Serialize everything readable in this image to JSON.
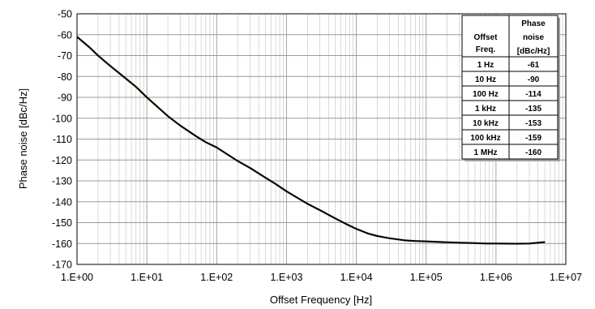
{
  "chart_data": {
    "type": "line",
    "xlabel": "Offset Frequency [Hz]",
    "ylabel": "Phase noise [dBc/Hz]",
    "x_scale": "log",
    "xlim": [
      1,
      10000000
    ],
    "ylim": [
      -170,
      -50
    ],
    "grid": true,
    "x_tick_labels": [
      "1.E+00",
      "1.E+01",
      "1.E+02",
      "1.E+03",
      "1.E+04",
      "1.E+05",
      "1.E+06",
      "1.E+07"
    ],
    "y_tick_labels": [
      "-50",
      "-60",
      "-70",
      "-80",
      "-90",
      "-100",
      "-110",
      "-120",
      "-130",
      "-140",
      "-150",
      "-160",
      "-170"
    ],
    "series": [
      {
        "color": "#000000",
        "x": [
          1,
          1.5,
          2,
          3,
          5,
          7,
          10,
          20,
          30,
          50,
          70,
          100,
          200,
          300,
          500,
          700,
          1000,
          2000,
          3000,
          5000,
          7000,
          10000,
          15000,
          20000,
          30000,
          50000,
          70000,
          100000,
          200000,
          300000,
          500000,
          700000,
          1000000,
          2000000,
          3000000,
          5000000
        ],
        "y": [
          -61,
          -66,
          -70,
          -75,
          -81,
          -85,
          -90,
          -99,
          -103.5,
          -108.5,
          -111.5,
          -114,
          -120.5,
          -123.8,
          -128.5,
          -131.5,
          -135,
          -141,
          -144,
          -148,
          -150.5,
          -153,
          -155.3,
          -156.4,
          -157.5,
          -158.5,
          -158.8,
          -159,
          -159.4,
          -159.6,
          -159.8,
          -160,
          -160,
          -160.1,
          -160,
          -159.3
        ]
      }
    ],
    "table": {
      "headers": [
        "Offset Freq.",
        "Phase noise [dBc/Hz]"
      ],
      "rows": [
        [
          "1 Hz",
          "-61"
        ],
        [
          "10 Hz",
          "-90"
        ],
        [
          "100 Hz",
          "-114"
        ],
        [
          "1 kHz",
          "-135"
        ],
        [
          "10 kHz",
          "-153"
        ],
        [
          "100 kHz",
          "-159"
        ],
        [
          "1 MHz",
          "-160"
        ]
      ]
    }
  }
}
